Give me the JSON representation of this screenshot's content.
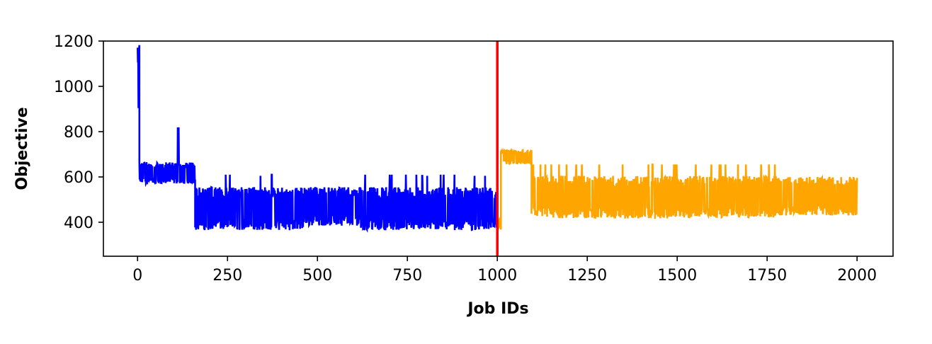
{
  "chart_data": {
    "type": "line",
    "title": "",
    "xlabel": "Job IDs",
    "ylabel": "Objective",
    "xlim": [
      -95,
      2100
    ],
    "ylim": [
      250,
      1200
    ],
    "xticks": [
      0,
      250,
      500,
      750,
      1000,
      1250,
      1500,
      1750,
      2000
    ],
    "yticks": [
      400,
      600,
      800,
      1000,
      1200
    ],
    "xtick_labels": [
      "0",
      "250",
      "500",
      "750",
      "1000",
      "1250",
      "1500",
      "1750",
      "2000"
    ],
    "ytick_labels": [
      "400",
      "600",
      "800",
      "1000",
      "1200"
    ],
    "grid": false,
    "legend": "none",
    "divider": {
      "x": 1000,
      "color": "#ff0000"
    },
    "series": [
      {
        "color": "#0000ff",
        "x_range": [
          0,
          1000
        ],
        "description_segments": [
          {
            "from": 0,
            "to": 5,
            "low": 820,
            "high": 1200
          },
          {
            "from": 5,
            "to": 160,
            "low": 570,
            "high": 665,
            "spike": {
              "x": 113,
              "value": 815
            }
          },
          {
            "from": 160,
            "to": 460,
            "low": 365,
            "high": 555,
            "spike_values": [
              605,
              610
            ]
          },
          {
            "from": 460,
            "to": 620,
            "low": 385,
            "high": 555
          },
          {
            "from": 620,
            "to": 1000,
            "low": 365,
            "high": 555,
            "spike_values": [
              605,
              610
            ]
          }
        ]
      },
      {
        "color": "#ffa500",
        "x_range": [
          1000,
          2000
        ],
        "description_segments": [
          {
            "from": 1000,
            "to": 1010,
            "low": 365,
            "high": 420
          },
          {
            "from": 1010,
            "to": 1095,
            "low": 655,
            "high": 720
          },
          {
            "from": 1095,
            "to": 1540,
            "low": 415,
            "high": 605,
            "spike_values": [
              655
            ]
          },
          {
            "from": 1540,
            "to": 1780,
            "low": 420,
            "high": 605,
            "spike_values": [
              655
            ]
          },
          {
            "from": 1780,
            "to": 2000,
            "low": 430,
            "high": 600,
            "spike_values": [
              545,
              600
            ]
          }
        ]
      }
    ]
  }
}
